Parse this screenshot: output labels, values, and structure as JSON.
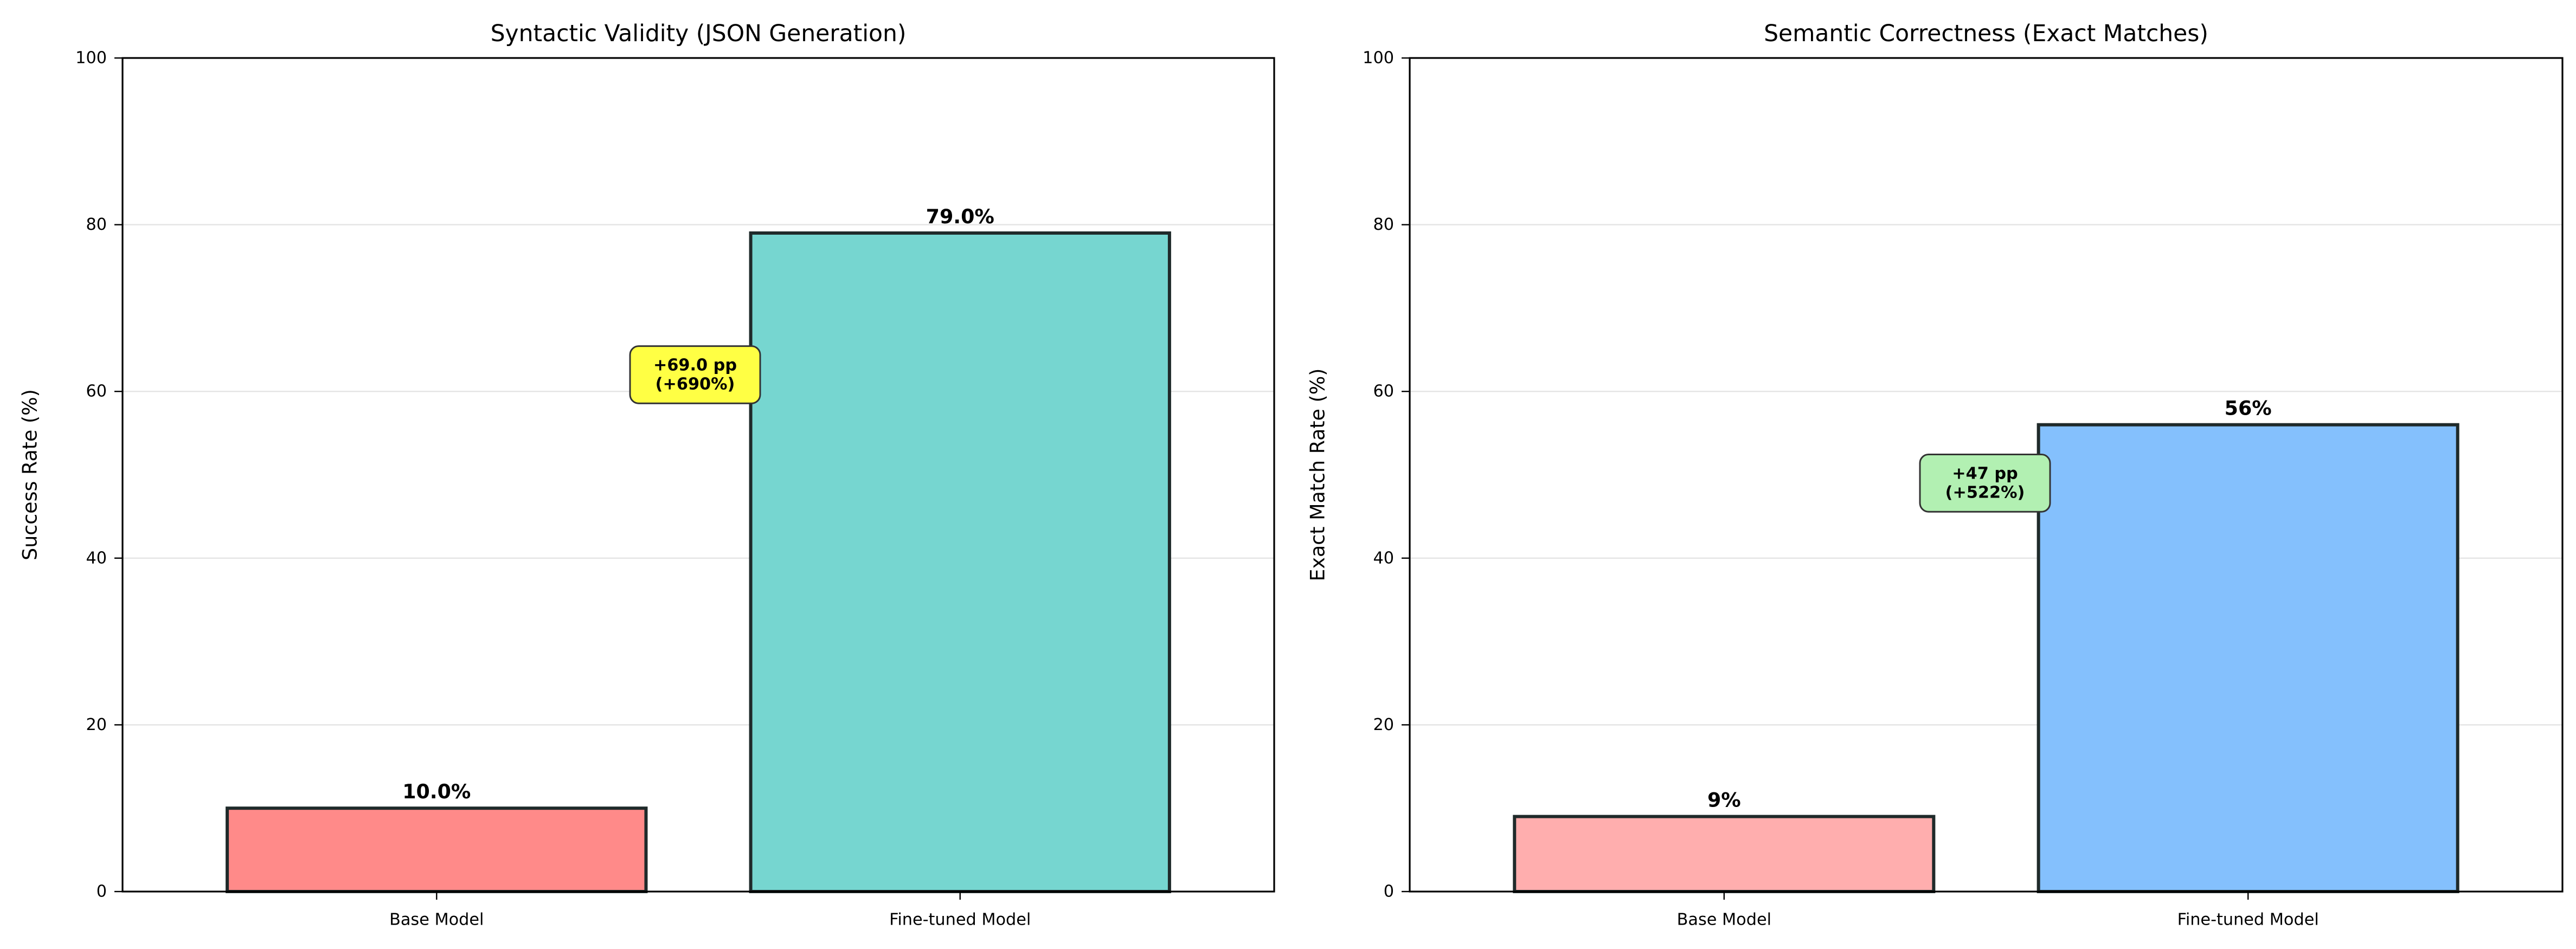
{
  "chart_data": [
    {
      "type": "bar",
      "title": "Syntactic Validity (JSON Generation)",
      "xlabel": "",
      "ylabel": "Success Rate (%)",
      "ylim": [
        0,
        100
      ],
      "yticks": [
        0,
        20,
        40,
        60,
        80,
        100
      ],
      "grid": "y",
      "categories": [
        "Base Model",
        "Fine-tuned Model"
      ],
      "values": [
        10.0,
        79.0
      ],
      "value_labels": [
        "10.0%",
        "79.0%"
      ],
      "bar_colors": [
        "#ff8a89",
        "#76d6d0"
      ],
      "annotation": {
        "lines": [
          "+69.0 pp",
          "(+690%)"
        ],
        "anchor_y": 62,
        "background": "#ffff44"
      }
    },
    {
      "type": "bar",
      "title": "Semantic Correctness (Exact Matches)",
      "xlabel": "",
      "ylabel": "Exact Match Rate (%)",
      "ylim": [
        0,
        100
      ],
      "yticks": [
        0,
        20,
        40,
        60,
        80,
        100
      ],
      "grid": "y",
      "categories": [
        "Base Model",
        "Fine-tuned Model"
      ],
      "values": [
        9,
        56
      ],
      "value_labels": [
        "9%",
        "56%"
      ],
      "bar_colors": [
        "#ffaeae",
        "#84c0fd"
      ],
      "annotation": {
        "lines": [
          "+47 pp",
          "(+522%)"
        ],
        "anchor_y": 49,
        "background": "#b2f0b2"
      }
    }
  ]
}
